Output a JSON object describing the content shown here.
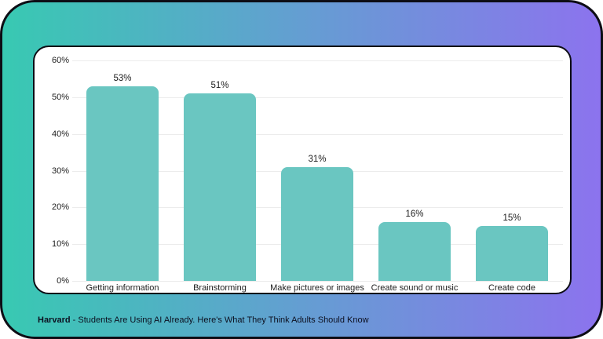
{
  "colors": {
    "gradient_start": "#38c9b2",
    "gradient_mid": "#649ed2",
    "gradient_end": "#8c73ee",
    "card_border": "#0d0d15",
    "panel_background": "#ffffff",
    "gridline": "#ececec",
    "bar_fill": "#6ac6c1",
    "text": "#1d1d1d"
  },
  "chart_data": {
    "type": "bar",
    "categories": [
      "Getting information",
      "Brainstorming",
      "Make pictures or images",
      "Create sound or music",
      "Create code"
    ],
    "values": [
      53,
      51,
      31,
      16,
      15
    ],
    "value_labels": [
      "53%",
      "51%",
      "31%",
      "16%",
      "15%"
    ],
    "y_tick_labels": [
      "60%",
      "50%",
      "40%",
      "30%",
      "20%",
      "10%",
      "0%"
    ],
    "ylim": [
      0,
      60
    ],
    "grid": true,
    "legend": false,
    "bar_color": "#6ac6c1"
  },
  "caption": {
    "source": "Harvard",
    "rest": "- Students Are Using AI Already. Here's What They Think Adults Should Know"
  }
}
